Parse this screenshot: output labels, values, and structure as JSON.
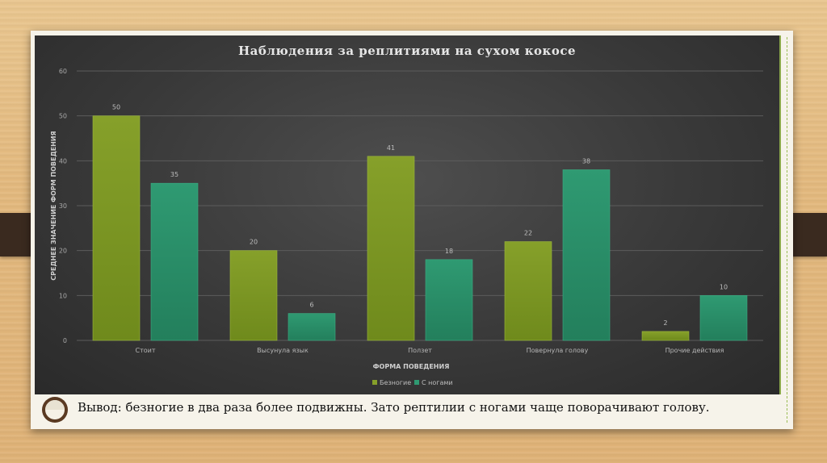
{
  "chart_data": {
    "type": "bar",
    "title": "Наблюдения за реплитиями на сухом кокосе",
    "xlabel": "ФОРМА ПОВЕДЕНИЯ",
    "ylabel": "СРЕДНЕЕ ЗНАЧЕНИЕ ФОРМ ПОВЕДЕНИЯ",
    "ylim": [
      0,
      60
    ],
    "yticks": [
      0,
      10,
      20,
      30,
      40,
      50,
      60
    ],
    "categories": [
      "Стоит",
      "Высунула язык",
      "Ползет",
      "Повернула голову",
      "Прочие действия"
    ],
    "series": [
      {
        "name": "Безногие",
        "values": [
          50,
          20,
          41,
          22,
          2
        ],
        "color": "#86a02a"
      },
      {
        "name": "С ногами",
        "values": [
          35,
          6,
          18,
          38,
          10
        ],
        "color": "#2f9a72"
      }
    ],
    "legend_position": "bottom",
    "grid": true
  },
  "conclusion": "Вывод: безногие в два раза более подвижны. Зато рептилии с ногами чаще поворачивают голову.",
  "icons": {
    "coconut": "coconut-icon"
  }
}
